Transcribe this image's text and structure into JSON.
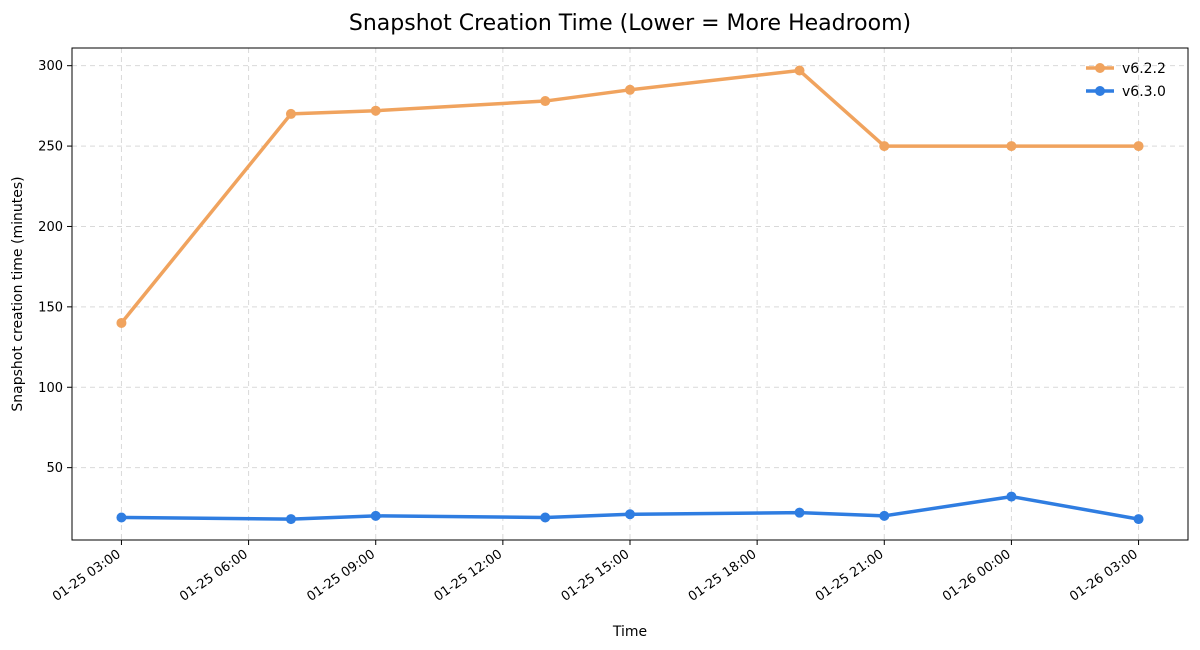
{
  "chart_data": {
    "type": "line",
    "title": "Snapshot Creation Time (Lower = More Headroom)",
    "xlabel": "Time",
    "ylabel": "Snapshot creation time (minutes)",
    "x_ticks": [
      "01-25 03:00",
      "01-25 06:00",
      "01-25 09:00",
      "01-25 12:00",
      "01-25 15:00",
      "01-25 18:00",
      "01-25 21:00",
      "01-26 00:00",
      "01-26 03:00"
    ],
    "y_ticks": [
      50,
      100,
      150,
      200,
      250,
      300
    ],
    "ylim": [
      5,
      311
    ],
    "xlim": [
      "2024-01-25 01:50",
      "2024-01-26 04:10"
    ],
    "grid": true,
    "legend_position": "top-right",
    "series": [
      {
        "name": "v6.2.2",
        "color": "#f0a35e",
        "points": [
          {
            "x": "01-25 03:00",
            "y": 140
          },
          {
            "x": "01-25 07:00",
            "y": 270
          },
          {
            "x": "01-25 09:00",
            "y": 272
          },
          {
            "x": "01-25 13:00",
            "y": 278
          },
          {
            "x": "01-25 15:00",
            "y": 285
          },
          {
            "x": "01-25 19:00",
            "y": 297
          },
          {
            "x": "01-25 21:00",
            "y": 250
          },
          {
            "x": "01-26 00:00",
            "y": 250
          },
          {
            "x": "01-26 03:00",
            "y": 250
          }
        ]
      },
      {
        "name": "v6.3.0",
        "color": "#2f7de1",
        "points": [
          {
            "x": "01-25 03:00",
            "y": 19
          },
          {
            "x": "01-25 07:00",
            "y": 18
          },
          {
            "x": "01-25 09:00",
            "y": 20
          },
          {
            "x": "01-25 13:00",
            "y": 19
          },
          {
            "x": "01-25 15:00",
            "y": 21
          },
          {
            "x": "01-25 19:00",
            "y": 22
          },
          {
            "x": "01-25 21:00",
            "y": 20
          },
          {
            "x": "01-26 00:00",
            "y": 32
          },
          {
            "x": "01-26 03:00",
            "y": 18
          }
        ]
      }
    ]
  }
}
